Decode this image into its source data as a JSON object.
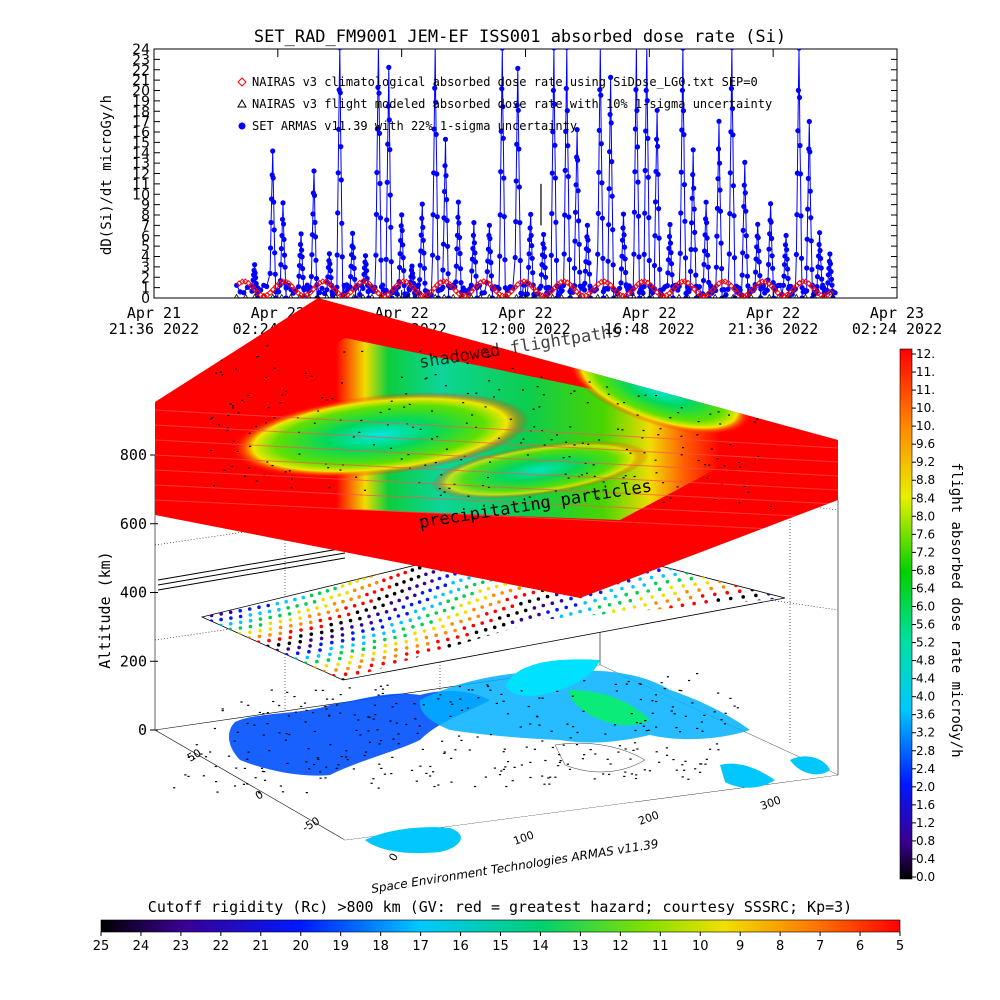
{
  "chart_data": [
    {
      "type": "scatter",
      "title": "SET_RAD_FM9001  JEM-EF ISS001 absorbed dose rate (Si)",
      "ylabel": "dD(Si)/dt microGy/h",
      "ylim": [
        0,
        24
      ],
      "yticks": [
        0,
        1,
        2,
        3,
        4,
        5,
        6,
        7,
        8,
        9,
        10,
        11,
        12,
        13,
        14,
        15,
        16,
        17,
        18,
        19,
        20,
        21,
        22,
        23,
        24
      ],
      "xlim_hours": [
        0,
        28.8
      ],
      "xticks": [
        {
          "h": 0,
          "line1": "Apr  21",
          "line2": "21:36  2022"
        },
        {
          "h": 4.8,
          "line1": "Apr  22",
          "line2": "02:24  2022"
        },
        {
          "h": 9.6,
          "line1": "Apr  22",
          "line2": "07:12  2022"
        },
        {
          "h": 14.4,
          "line1": "Apr  22",
          "line2": "12:00  2022"
        },
        {
          "h": 19.2,
          "line1": "Apr  22",
          "line2": "16:48  2022"
        },
        {
          "h": 24.0,
          "line1": "Apr  22",
          "line2": "21:36  2022"
        },
        {
          "h": 28.8,
          "line1": "Apr  23",
          "line2": "02:24  2022"
        }
      ],
      "legend_placement": "top-left",
      "series": [
        {
          "name": "NAIRAS v3 climatological absorbed dose rate using SiDose_LG0.txt SEP=0",
          "color": "#ff0000",
          "marker": "diamond",
          "period_hours": 1.55,
          "min": 0.2,
          "max": 1.6
        },
        {
          "name": "NAIRAS v3 flight modeled absorbed dose rate with 10% 1-sigma uncertainty",
          "color": "#000000",
          "marker": "triangle"
        },
        {
          "name": "SET ARMAS v11.39 with 22% 1-sigma uncertainty",
          "color": "#0000ff",
          "marker": "circle",
          "t_start_hours": 3.2,
          "t_end_hours": 26.4,
          "peaks": [
            {
              "t": 3.9,
              "v": 3
            },
            {
              "t": 4.6,
              "v": 14
            },
            {
              "t": 5.0,
              "v": 9
            },
            {
              "t": 5.7,
              "v": 6
            },
            {
              "t": 6.2,
              "v": 12
            },
            {
              "t": 6.8,
              "v": 4
            },
            {
              "t": 7.2,
              "v": 24
            },
            {
              "t": 7.7,
              "v": 6
            },
            {
              "t": 8.2,
              "v": 4
            },
            {
              "t": 8.7,
              "v": 24
            },
            {
              "t": 9.1,
              "v": 22
            },
            {
              "t": 9.6,
              "v": 8
            },
            {
              "t": 10.0,
              "v": 3
            },
            {
              "t": 10.4,
              "v": 9
            },
            {
              "t": 10.9,
              "v": 24
            },
            {
              "t": 11.3,
              "v": 15
            },
            {
              "t": 11.8,
              "v": 9
            },
            {
              "t": 12.4,
              "v": 7
            },
            {
              "t": 13.0,
              "v": 7
            },
            {
              "t": 13.5,
              "v": 24
            },
            {
              "t": 14.1,
              "v": 22
            },
            {
              "t": 14.6,
              "v": 8
            },
            {
              "t": 15.1,
              "v": 6
            },
            {
              "t": 15.5,
              "v": 24
            },
            {
              "t": 16.0,
              "v": 24
            },
            {
              "t": 16.4,
              "v": 16
            },
            {
              "t": 16.8,
              "v": 7
            },
            {
              "t": 17.3,
              "v": 24
            },
            {
              "t": 17.7,
              "v": 21
            },
            {
              "t": 18.2,
              "v": 8
            },
            {
              "t": 18.7,
              "v": 24
            },
            {
              "t": 19.1,
              "v": 24
            },
            {
              "t": 19.5,
              "v": 18
            },
            {
              "t": 20.0,
              "v": 7
            },
            {
              "t": 20.5,
              "v": 24
            },
            {
              "t": 20.9,
              "v": 14
            },
            {
              "t": 21.4,
              "v": 9
            },
            {
              "t": 21.9,
              "v": 17
            },
            {
              "t": 22.4,
              "v": 24
            },
            {
              "t": 22.9,
              "v": 13
            },
            {
              "t": 23.4,
              "v": 7
            },
            {
              "t": 23.9,
              "v": 9
            },
            {
              "t": 24.5,
              "v": 6
            },
            {
              "t": 25.0,
              "v": 24
            },
            {
              "t": 25.4,
              "v": 17
            },
            {
              "t": 25.8,
              "v": 6
            },
            {
              "t": 26.2,
              "v": 4
            }
          ]
        }
      ]
    },
    {
      "type": "area",
      "zlabel": "Altitude (km)",
      "zticks": [
        0,
        200,
        400,
        600,
        800
      ],
      "xticks": [
        "0",
        "100",
        "200",
        "300"
      ],
      "yticks": [
        "50",
        "0",
        "-50"
      ],
      "annotations": [
        "shadowed flightpaths",
        "precipitating particles"
      ],
      "credit": "Space Environment Technologies ARMAS v11.39"
    }
  ],
  "colorbar_right": {
    "label": "flight absorbed dose rate microGy/h",
    "ticks": [
      "12.",
      "11.",
      "11.",
      "10.",
      "10.",
      "9.6",
      "9.2",
      "8.8",
      "8.4",
      "8.0",
      "7.6",
      "7.2",
      "6.8",
      "6.4",
      "6.0",
      "5.6",
      "5.2",
      "4.8",
      "4.4",
      "4.0",
      "3.6",
      "3.2",
      "2.8",
      "2.4",
      "2.0",
      "1.6",
      "1.2",
      "0.8",
      "0.4",
      "0.0"
    ]
  },
  "colorbar_bottom": {
    "label": "Cutoff rigidity (Rc) >800 km (GV: red = greatest hazard; courtesy SSSRC; Kp=3)",
    "ticks": [
      "25",
      "24",
      "23",
      "22",
      "21",
      "20",
      "19",
      "18",
      "17",
      "16",
      "15",
      "14",
      "13",
      "12",
      "11",
      "10",
      "9",
      "8",
      "7",
      "6",
      "5"
    ]
  }
}
